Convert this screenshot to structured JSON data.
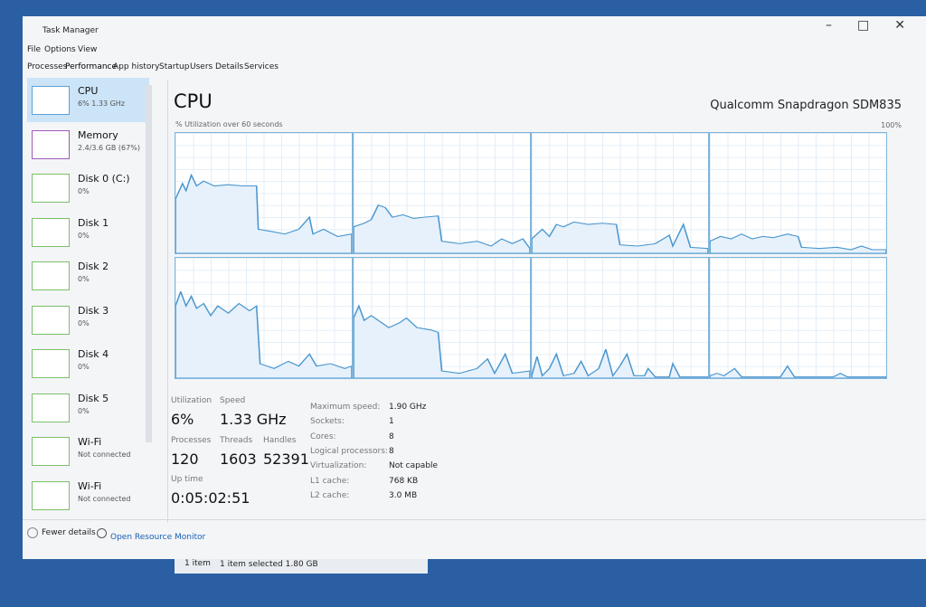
{
  "window": {
    "title": "Task Manager"
  },
  "menu": [
    "File",
    "Options",
    "View"
  ],
  "tabs": [
    "Processes",
    "Performance",
    "App history",
    "Startup",
    "Users",
    "Details",
    "Services"
  ],
  "sidebar": [
    {
      "name": "CPU",
      "detail": "6% 1.33 GHz"
    },
    {
      "name": "Memory",
      "detail": "2.4/3.6 GB (67%)"
    },
    {
      "name": "Disk 0 (C:)",
      "detail": "0%"
    },
    {
      "name": "Disk 1",
      "detail": "0%"
    },
    {
      "name": "Disk 2",
      "detail": "0%"
    },
    {
      "name": "Disk 3",
      "detail": "0%"
    },
    {
      "name": "Disk 4",
      "detail": "0%"
    },
    {
      "name": "Disk 5",
      "detail": "0%"
    },
    {
      "name": "Wi-Fi",
      "detail": "Not connected"
    },
    {
      "name": "Wi-Fi",
      "detail": "Not connected"
    }
  ],
  "main": {
    "title": "CPU",
    "processor": "Qualcomm Snapdragon SDM835",
    "graph_label": "% Utilization over 60 seconds",
    "graph_max": "100%",
    "stats": [
      {
        "label": "Utilization",
        "value": "6%"
      },
      {
        "label": "Speed",
        "value": "1.33 GHz"
      },
      {
        "label": "Processes",
        "value": "120"
      },
      {
        "label": "Threads",
        "value": "1603"
      },
      {
        "label": "Handles",
        "value": "52391"
      },
      {
        "label": "Up time",
        "value": "0:05:02:51"
      }
    ],
    "details": [
      [
        "Maximum speed:",
        "1.90 GHz"
      ],
      [
        "Sockets:",
        "1"
      ],
      [
        "Cores:",
        "8"
      ],
      [
        "Logical processors:",
        "8"
      ],
      [
        "Virtualization:",
        "Not capable"
      ],
      [
        "L1 cache:",
        "768 KB"
      ],
      [
        "L2 cache:",
        "3.0 MB"
      ]
    ]
  },
  "footer": {
    "fewer_details": "Fewer details",
    "resource_monitor": "Open Resource Monitor"
  },
  "status": [
    "1 item",
    "1 item selected  1.80 GB"
  ]
}
